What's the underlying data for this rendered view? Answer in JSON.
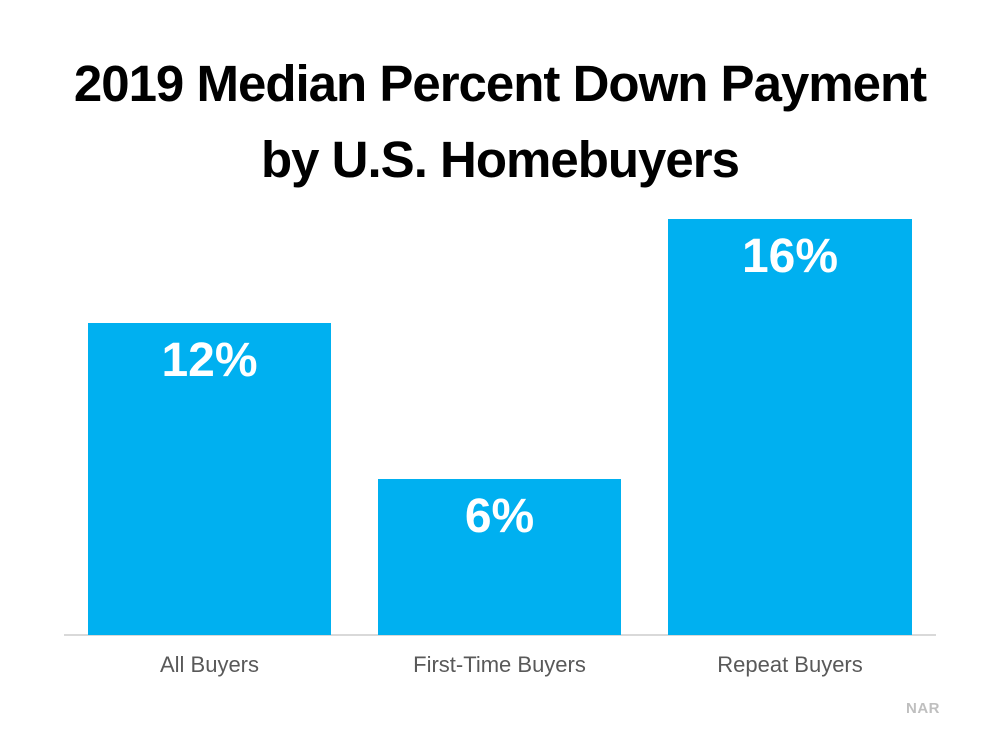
{
  "title": {
    "line1": "2019 Median Percent Down Payment",
    "line2": "by U.S. Homebuyers"
  },
  "attribution": "NAR",
  "colors": {
    "background": "#ffffff",
    "title": "#000000",
    "bar": "#00b0f0",
    "bar_value_label": "#ffffff",
    "category_label": "#595959",
    "axis_line": "#d9d9d9",
    "attribution": "#bfbfbf"
  },
  "chart_data": {
    "type": "bar",
    "title": "2019 Median Percent Down Payment by U.S. Homebuyers",
    "categories": [
      "All Buyers",
      "First-Time Buyers",
      "Repeat Buyers"
    ],
    "values": [
      12,
      6,
      16
    ],
    "data_labels": [
      "12%",
      "6%",
      "16%"
    ],
    "unit": "percent",
    "xlabel": "",
    "ylabel": "",
    "ylim": [
      0,
      16
    ],
    "grid": false,
    "legend": false,
    "y_axis_visible": false,
    "x_baseline_visible": true,
    "data_label_position": "inside-top",
    "source": "NAR"
  }
}
